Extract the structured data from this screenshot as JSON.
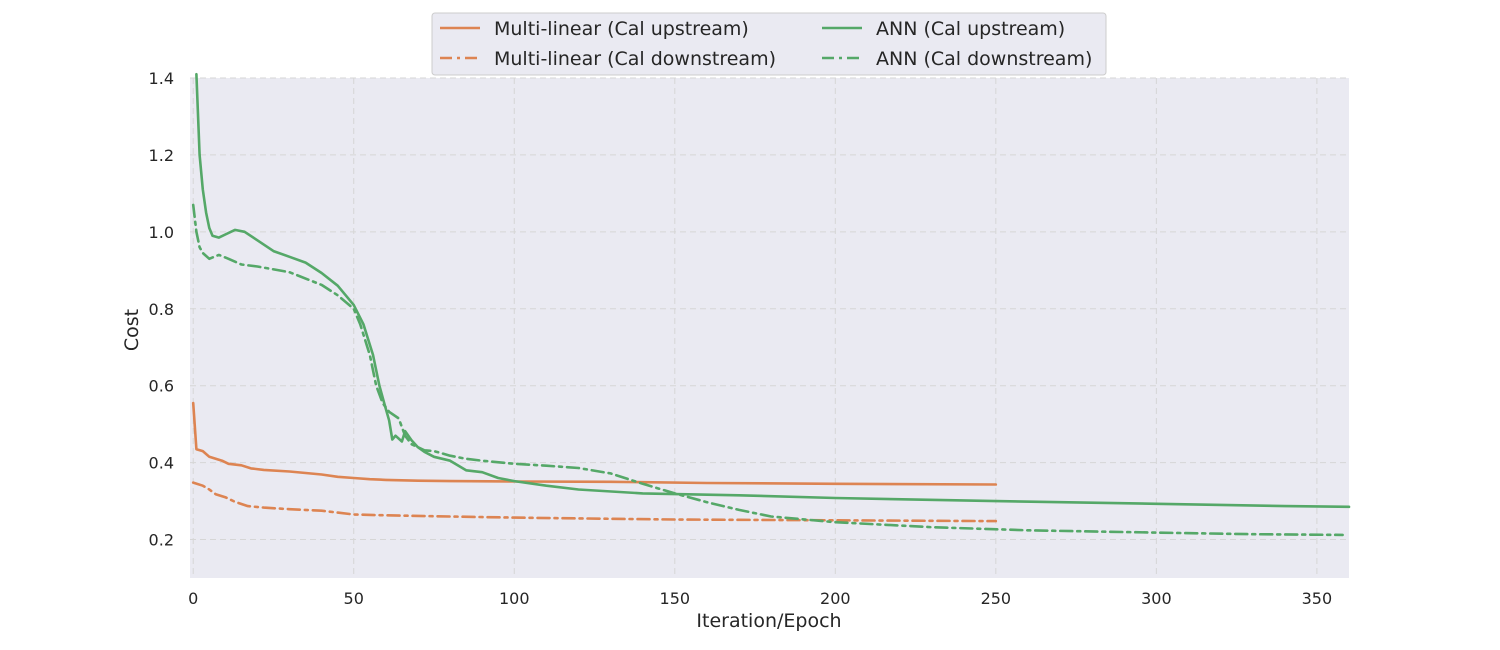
{
  "chart_data": {
    "type": "line",
    "title": "",
    "xlabel": "Iteration/Epoch",
    "ylabel": "Cost",
    "xlim": [
      -1,
      360
    ],
    "ylim": [
      0.1,
      1.4
    ],
    "xticks": [
      0,
      50,
      100,
      150,
      200,
      250,
      300,
      350
    ],
    "yticks": [
      0.2,
      0.4,
      0.6,
      0.8,
      1.0,
      1.2,
      1.4
    ],
    "grid": true,
    "legend_position": "top-center",
    "colors": {
      "multilinear": "#dd8452",
      "ann": "#55a868",
      "plot_bg": "#eaeaf2",
      "grid": "#d6d6d6"
    },
    "series": [
      {
        "name": "Multi-linear (Cal upstream)",
        "color": "#dd8452",
        "style": "solid",
        "points": [
          [
            0,
            0.555
          ],
          [
            1,
            0.435
          ],
          [
            3,
            0.43
          ],
          [
            5,
            0.415
          ],
          [
            7,
            0.41
          ],
          [
            9,
            0.405
          ],
          [
            11,
            0.397
          ],
          [
            15,
            0.393
          ],
          [
            18,
            0.385
          ],
          [
            22,
            0.381
          ],
          [
            30,
            0.377
          ],
          [
            35,
            0.373
          ],
          [
            40,
            0.369
          ],
          [
            45,
            0.363
          ],
          [
            50,
            0.36
          ],
          [
            55,
            0.357
          ],
          [
            60,
            0.355
          ],
          [
            70,
            0.353
          ],
          [
            80,
            0.352
          ],
          [
            100,
            0.351
          ],
          [
            130,
            0.35
          ],
          [
            160,
            0.347
          ],
          [
            200,
            0.345
          ],
          [
            250,
            0.343
          ]
        ]
      },
      {
        "name": "Multi-linear (Cal downstream)",
        "color": "#dd8452",
        "style": "dashdot",
        "points": [
          [
            0,
            0.348
          ],
          [
            3,
            0.34
          ],
          [
            5,
            0.33
          ],
          [
            7,
            0.318
          ],
          [
            10,
            0.31
          ],
          [
            13,
            0.298
          ],
          [
            17,
            0.287
          ],
          [
            22,
            0.283
          ],
          [
            30,
            0.279
          ],
          [
            40,
            0.275
          ],
          [
            45,
            0.27
          ],
          [
            50,
            0.265
          ],
          [
            60,
            0.263
          ],
          [
            80,
            0.26
          ],
          [
            100,
            0.257
          ],
          [
            130,
            0.254
          ],
          [
            150,
            0.252
          ],
          [
            200,
            0.25
          ],
          [
            250,
            0.248
          ]
        ]
      },
      {
        "name": "ANN (Cal upstream)",
        "color": "#55a868",
        "style": "solid",
        "points": [
          [
            1,
            1.41
          ],
          [
            2,
            1.2
          ],
          [
            3,
            1.11
          ],
          [
            4,
            1.05
          ],
          [
            5,
            1.01
          ],
          [
            6,
            0.99
          ],
          [
            8,
            0.985
          ],
          [
            10,
            0.993
          ],
          [
            13,
            1.005
          ],
          [
            16,
            1.0
          ],
          [
            20,
            0.978
          ],
          [
            25,
            0.95
          ],
          [
            30,
            0.935
          ],
          [
            35,
            0.92
          ],
          [
            40,
            0.893
          ],
          [
            45,
            0.86
          ],
          [
            50,
            0.81
          ],
          [
            53,
            0.76
          ],
          [
            56,
            0.68
          ],
          [
            58,
            0.6
          ],
          [
            60,
            0.54
          ],
          [
            61,
            0.51
          ],
          [
            62,
            0.46
          ],
          [
            63,
            0.47
          ],
          [
            65,
            0.455
          ],
          [
            66,
            0.482
          ],
          [
            68,
            0.458
          ],
          [
            70,
            0.44
          ],
          [
            72,
            0.428
          ],
          [
            75,
            0.415
          ],
          [
            80,
            0.405
          ],
          [
            85,
            0.38
          ],
          [
            90,
            0.375
          ],
          [
            95,
            0.36
          ],
          [
            100,
            0.352
          ],
          [
            110,
            0.34
          ],
          [
            120,
            0.33
          ],
          [
            140,
            0.32
          ],
          [
            170,
            0.315
          ],
          [
            200,
            0.308
          ],
          [
            250,
            0.3
          ],
          [
            300,
            0.293
          ],
          [
            340,
            0.287
          ],
          [
            360,
            0.285
          ]
        ]
      },
      {
        "name": "ANN (Cal downstream)",
        "color": "#55a868",
        "style": "dashdot",
        "points": [
          [
            0,
            1.07
          ],
          [
            1,
            1.0
          ],
          [
            2,
            0.96
          ],
          [
            3,
            0.945
          ],
          [
            5,
            0.93
          ],
          [
            8,
            0.94
          ],
          [
            11,
            0.93
          ],
          [
            15,
            0.915
          ],
          [
            20,
            0.91
          ],
          [
            30,
            0.895
          ],
          [
            40,
            0.862
          ],
          [
            45,
            0.835
          ],
          [
            50,
            0.8
          ],
          [
            52,
            0.76
          ],
          [
            55,
            0.68
          ],
          [
            57,
            0.6
          ],
          [
            59,
            0.555
          ],
          [
            61,
            0.532
          ],
          [
            64,
            0.515
          ],
          [
            66,
            0.47
          ],
          [
            68,
            0.448
          ],
          [
            70,
            0.44
          ],
          [
            72,
            0.432
          ],
          [
            75,
            0.43
          ],
          [
            80,
            0.418
          ],
          [
            85,
            0.41
          ],
          [
            90,
            0.405
          ],
          [
            100,
            0.397
          ],
          [
            110,
            0.392
          ],
          [
            120,
            0.386
          ],
          [
            130,
            0.372
          ],
          [
            140,
            0.345
          ],
          [
            150,
            0.32
          ],
          [
            160,
            0.297
          ],
          [
            170,
            0.277
          ],
          [
            180,
            0.26
          ],
          [
            200,
            0.245
          ],
          [
            230,
            0.232
          ],
          [
            260,
            0.224
          ],
          [
            300,
            0.218
          ],
          [
            330,
            0.214
          ],
          [
            358,
            0.212
          ]
        ]
      }
    ]
  }
}
